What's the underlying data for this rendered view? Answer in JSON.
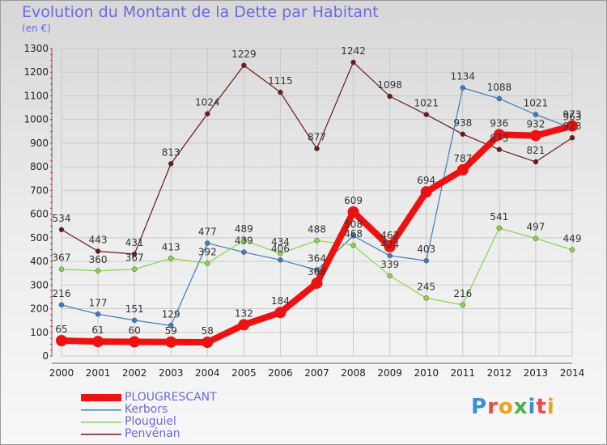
{
  "title": "Evolution du Montant de la Dette par Habitant",
  "unit_label": "(en €)",
  "logo": {
    "text": "Proxiti",
    "letter_colors": [
      "#3b8fd6",
      "#e84a4a",
      "#f0a020",
      "#4cae4c",
      "#3b8fd6",
      "#e84a4a",
      "#f0a020"
    ]
  },
  "chart_data": {
    "type": "line",
    "title": "Evolution du Montant de la Dette par Habitant",
    "ylabel": "(en €)",
    "xlabel": "",
    "x": [
      "2000",
      "2001",
      "2002",
      "2003",
      "2004",
      "2005",
      "2006",
      "2007",
      "2008",
      "2009",
      "2010",
      "2011",
      "2012",
      "2013",
      "2014"
    ],
    "ylim": [
      0,
      1300
    ],
    "yticks": [
      0,
      100,
      200,
      300,
      400,
      500,
      600,
      700,
      800,
      900,
      1000,
      1100,
      1200,
      1300
    ],
    "grid": true,
    "legend_position": "bottom-left",
    "series": [
      {
        "name": "Penvénan",
        "color": "#6b1a1a",
        "emphasis": false,
        "values": [
          534,
          443,
          431,
          813,
          1024,
          1229,
          1115,
          877,
          1242,
          1098,
          1021,
          938,
          873,
          821,
          923
        ]
      },
      {
        "name": "Kerbors",
        "color": "#3a7dc0",
        "emphasis": false,
        "values": [
          216,
          177,
          151,
          129,
          477,
          439,
          406,
          364,
          508,
          424,
          403,
          1134,
          1088,
          1021,
          963
        ]
      },
      {
        "name": "Plouguiel",
        "color": "#88d44a",
        "emphasis": false,
        "values": [
          367,
          360,
          367,
          413,
          392,
          489,
          434,
          488,
          468,
          339,
          245,
          216,
          541,
          497,
          449
        ]
      },
      {
        "name": "PLOUGRESCANT",
        "color": "#ee1111",
        "emphasis": true,
        "values": [
          65,
          61,
          60,
          59,
          58,
          132,
          184,
          308,
          609,
          462,
          694,
          787,
          936,
          932,
          973
        ]
      }
    ],
    "legend_order": [
      "PLOUGRESCANT",
      "Kerbors",
      "Plouguiel",
      "Penvénan"
    ]
  }
}
